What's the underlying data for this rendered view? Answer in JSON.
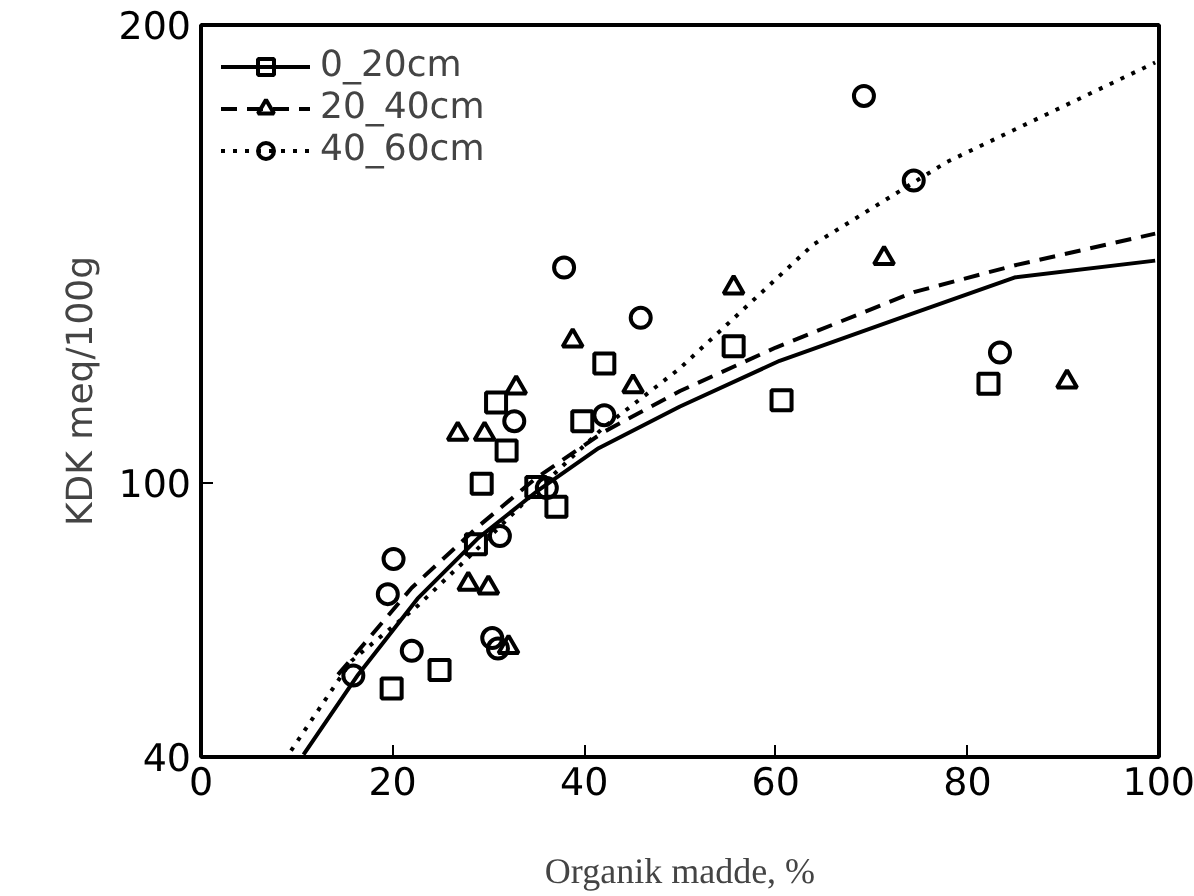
{
  "chart_data": {
    "type": "scatter",
    "xlabel": "Organik madde, %",
    "ylabel": "KDK meq/100g",
    "xlim": [
      0,
      100
    ],
    "ylim": [
      40,
      200
    ],
    "xticks": [
      0,
      20,
      40,
      60,
      80,
      100
    ],
    "yticks": [
      40,
      100,
      200
    ],
    "grid": false,
    "legend": "top left",
    "series": [
      {
        "name": "0_20cm",
        "color": "#000000",
        "marker": "square",
        "x": [
          30.8,
          31.9,
          29.3,
          28.7,
          35.0,
          37.1,
          39.8,
          19.9,
          24.9,
          42.1,
          55.6,
          60.6,
          82.2
        ],
        "values": [
          117.5,
          107,
          99.7,
          86.5,
          99,
          94.7,
          113.4,
          55,
          59,
          126,
          129.8,
          118,
          121.6
        ]
      },
      {
        "name": "20_40cm",
        "color": "#000000",
        "marker": "triangle",
        "x": [
          32.9,
          26.8,
          29.6,
          27.9,
          30,
          32.1,
          45.1,
          38.8,
          55.6,
          71.3,
          90.4
        ],
        "values": [
          120.7,
          110.6,
          110.6,
          77.8,
          77,
          64,
          121,
          131,
          142.6,
          149,
          122
        ]
      },
      {
        "name": "40_60cm",
        "color": "#000000",
        "marker": "circle",
        "x": [
          37.9,
          45.9,
          32.7,
          42.1,
          36.1,
          31.2,
          20.1,
          19.5,
          22,
          15.9,
          30.4,
          31,
          69.2,
          74.4,
          83.4
        ],
        "values": [
          147,
          136,
          113.4,
          114.7,
          98.8,
          88.3,
          83.3,
          75.6,
          63.2,
          57.8,
          66,
          63.7,
          184.5,
          166,
          128.4
        ]
      },
      {
        "type": "line",
        "color": "#000000",
        "line_style": "solid",
        "x": [
          10.7,
          16.4,
          22.6,
          28.9,
          35.2,
          41.5,
          50,
          60.4,
          74.4,
          84.9,
          99.6
        ],
        "values": [
          40.5,
          58,
          74.6,
          87.8,
          98.3,
          107.5,
          116.6,
          126.6,
          137,
          144.8,
          148.5
        ]
      },
      {
        "type": "line",
        "color": "#000000",
        "line_style": "dashed",
        "x": [
          14.3,
          22,
          29,
          35,
          42,
          50,
          60,
          74.4,
          85,
          99.6
        ],
        "values": [
          58,
          77,
          90.5,
          101,
          111,
          120,
          129.5,
          141.6,
          147.5,
          154.4
        ]
      },
      {
        "type": "line",
        "color": "#000000",
        "line_style": "dotted",
        "x": [
          9.4,
          15.7,
          22.6,
          28.9,
          34.6,
          42,
          49.9,
          63.9,
          77.8,
          99.6
        ],
        "values": [
          41.4,
          61,
          73,
          85.6,
          97.4,
          112,
          124.8,
          152,
          170,
          191.8
        ]
      }
    ]
  }
}
